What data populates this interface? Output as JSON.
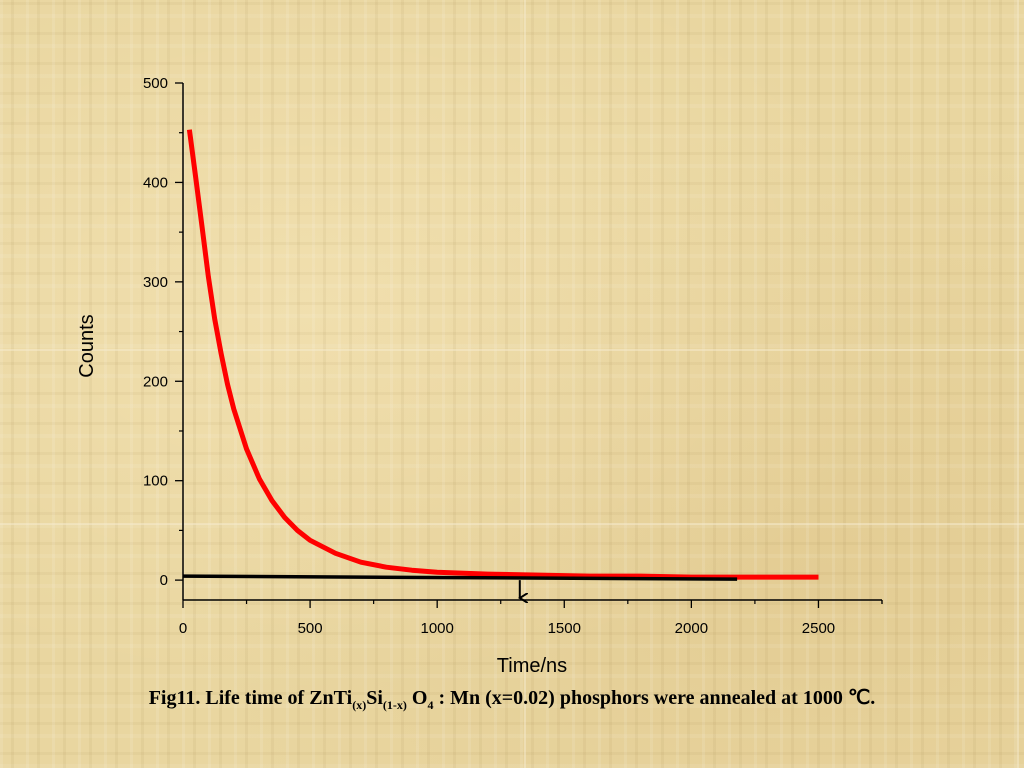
{
  "chart_data": {
    "type": "line",
    "xlabel": "Time/ns",
    "ylabel": "Counts",
    "xlim": [
      0,
      2750
    ],
    "ylim": [
      -20,
      500
    ],
    "x_ticks": [
      0,
      500,
      1000,
      1500,
      2000,
      2500
    ],
    "y_ticks": [
      0,
      100,
      200,
      300,
      400,
      500
    ],
    "grid": false,
    "series": [
      {
        "color": "#ff0000",
        "x": [
          25,
          50,
          75,
          100,
          125,
          150,
          175,
          200,
          250,
          300,
          350,
          400,
          450,
          500,
          600,
          700,
          800,
          900,
          1000,
          1200,
          1400,
          1600,
          1800,
          2000,
          2200,
          2400,
          2500
        ],
        "y": [
          453,
          405,
          355,
          305,
          262,
          228,
          197,
          172,
          132,
          102,
          80,
          63,
          50,
          40,
          27,
          18,
          13,
          10,
          8,
          6,
          5,
          4,
          4,
          3,
          3,
          3,
          3
        ]
      }
    ],
    "annotations": [
      {
        "type": "line",
        "color": "#000000",
        "x": [
          0,
          2180
        ],
        "y": [
          4,
          1
        ]
      },
      {
        "type": "arrow",
        "color": "#000000",
        "x": 1325,
        "y_from": 0,
        "y_to": -20
      }
    ]
  },
  "caption": {
    "prefix": "Fig11. Life time of ZnTi",
    "sub1": "(x)",
    "mid1": "Si",
    "sub2": "(1-x)",
    "mid2": " O",
    "sub3": "4",
    "suffix": " : Mn (x=0.02) phosphors were annealed at 1000 ℃."
  }
}
